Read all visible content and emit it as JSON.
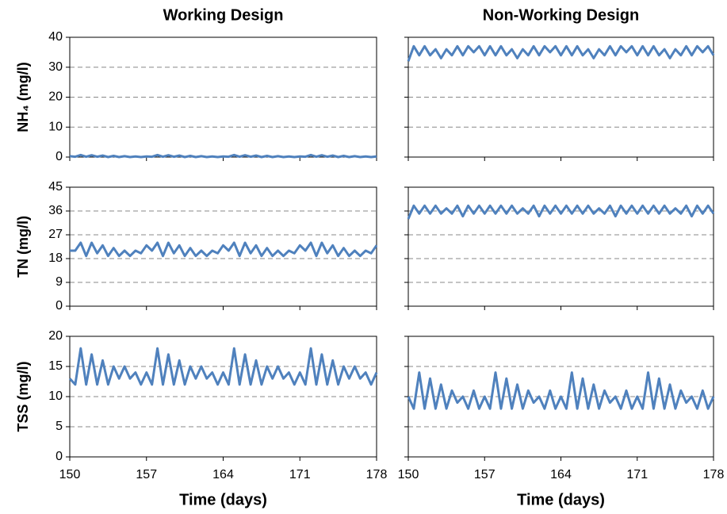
{
  "chart_data": [
    {
      "type": "line",
      "title": "Working Design",
      "ylabel": "NH₄ (mg/l)",
      "color": "#4f81bd",
      "x": [
        150,
        150.5,
        151,
        151.5,
        152,
        152.5,
        153,
        153.5,
        154,
        154.5,
        155,
        155.5,
        156,
        156.5,
        157,
        157.5,
        158,
        158.5,
        159,
        159.5,
        160,
        160.5,
        161,
        161.5,
        162,
        162.5,
        163,
        163.5,
        164,
        164.5,
        165,
        165.5,
        166,
        166.5,
        167,
        167.5,
        168,
        168.5,
        169,
        169.5,
        170,
        170.5,
        171,
        171.5,
        172,
        172.5,
        173,
        173.5,
        174,
        174.5,
        175,
        175.5,
        176,
        176.5,
        177,
        177.5,
        178
      ],
      "values": [
        0.3,
        0.1,
        0.7,
        0.1,
        0.6,
        0.1,
        0.5,
        0.0,
        0.4,
        0.0,
        0.3,
        0.0,
        0.2,
        0.0,
        0.2,
        0.1,
        0.7,
        0.1,
        0.6,
        0.1,
        0.5,
        0.0,
        0.4,
        0.0,
        0.3,
        0.0,
        0.2,
        0.0,
        0.2,
        0.1,
        0.7,
        0.1,
        0.6,
        0.1,
        0.5,
        0.0,
        0.4,
        0.0,
        0.3,
        0.0,
        0.2,
        0.0,
        0.2,
        0.1,
        0.7,
        0.1,
        0.6,
        0.1,
        0.5,
        0.0,
        0.4,
        0.0,
        0.3,
        0.0,
        0.2,
        0.0,
        0.2
      ],
      "xlim": [
        150,
        178
      ],
      "xticks": [
        150,
        157,
        164,
        171,
        178
      ],
      "ylim": [
        0,
        40
      ],
      "yticks": [
        0,
        10,
        20,
        30,
        40
      ],
      "grid": true,
      "show_ytick_labels": true,
      "show_xtick_labels": false
    },
    {
      "type": "line",
      "title": "Non-Working Design",
      "color": "#4f81bd",
      "x": [
        150,
        150.5,
        151,
        151.5,
        152,
        152.5,
        153,
        153.5,
        154,
        154.5,
        155,
        155.5,
        156,
        156.5,
        157,
        157.5,
        158,
        158.5,
        159,
        159.5,
        160,
        160.5,
        161,
        161.5,
        162,
        162.5,
        163,
        163.5,
        164,
        164.5,
        165,
        165.5,
        166,
        166.5,
        167,
        167.5,
        168,
        168.5,
        169,
        169.5,
        170,
        170.5,
        171,
        171.5,
        172,
        172.5,
        173,
        173.5,
        174,
        174.5,
        175,
        175.5,
        176,
        176.5,
        177,
        177.5,
        178
      ],
      "values": [
        32,
        37,
        34,
        37,
        34,
        36,
        33,
        36,
        34,
        37,
        34,
        37,
        35,
        37,
        34,
        37,
        34,
        37,
        34,
        36,
        33,
        36,
        34,
        37,
        34,
        37,
        35,
        37,
        34,
        37,
        34,
        37,
        34,
        36,
        33,
        36,
        34,
        37,
        34,
        37,
        35,
        37,
        34,
        37,
        34,
        37,
        34,
        36,
        33,
        36,
        34,
        37,
        34,
        37,
        35,
        37,
        34
      ],
      "xlim": [
        150,
        178
      ],
      "xticks": [
        150,
        157,
        164,
        171,
        178
      ],
      "ylim": [
        0,
        40
      ],
      "yticks": [
        0,
        10,
        20,
        30,
        40
      ],
      "grid": true,
      "show_ytick_labels": false,
      "show_xtick_labels": false
    },
    {
      "type": "line",
      "ylabel": "TN (mg/l)",
      "color": "#4f81bd",
      "x": [
        150,
        150.5,
        151,
        151.5,
        152,
        152.5,
        153,
        153.5,
        154,
        154.5,
        155,
        155.5,
        156,
        156.5,
        157,
        157.5,
        158,
        158.5,
        159,
        159.5,
        160,
        160.5,
        161,
        161.5,
        162,
        162.5,
        163,
        163.5,
        164,
        164.5,
        165,
        165.5,
        166,
        166.5,
        167,
        167.5,
        168,
        168.5,
        169,
        169.5,
        170,
        170.5,
        171,
        171.5,
        172,
        172.5,
        173,
        173.5,
        174,
        174.5,
        175,
        175.5,
        176,
        176.5,
        177,
        177.5,
        178
      ],
      "values": [
        21,
        21,
        24,
        19,
        24,
        20,
        23,
        19,
        22,
        19,
        21,
        19,
        21,
        20,
        23,
        21,
        24,
        19,
        24,
        20,
        23,
        19,
        22,
        19,
        21,
        19,
        21,
        20,
        23,
        21,
        24,
        19,
        24,
        20,
        23,
        19,
        22,
        19,
        21,
        19,
        21,
        20,
        23,
        21,
        24,
        19,
        24,
        20,
        23,
        19,
        22,
        19,
        21,
        19,
        21,
        20,
        23
      ],
      "xlim": [
        150,
        178
      ],
      "xticks": [
        150,
        157,
        164,
        171,
        178
      ],
      "ylim": [
        0,
        45
      ],
      "yticks": [
        0,
        9,
        18,
        27,
        36,
        45
      ],
      "grid": true,
      "show_ytick_labels": true,
      "show_xtick_labels": false
    },
    {
      "type": "line",
      "color": "#4f81bd",
      "x": [
        150,
        150.5,
        151,
        151.5,
        152,
        152.5,
        153,
        153.5,
        154,
        154.5,
        155,
        155.5,
        156,
        156.5,
        157,
        157.5,
        158,
        158.5,
        159,
        159.5,
        160,
        160.5,
        161,
        161.5,
        162,
        162.5,
        163,
        163.5,
        164,
        164.5,
        165,
        165.5,
        166,
        166.5,
        167,
        167.5,
        168,
        168.5,
        169,
        169.5,
        170,
        170.5,
        171,
        171.5,
        172,
        172.5,
        173,
        173.5,
        174,
        174.5,
        175,
        175.5,
        176,
        176.5,
        177,
        177.5,
        178
      ],
      "values": [
        33,
        38,
        35,
        38,
        35,
        38,
        35,
        37,
        35,
        38,
        34,
        38,
        35,
        38,
        35,
        38,
        35,
        38,
        35,
        38,
        35,
        37,
        35,
        38,
        34,
        38,
        35,
        38,
        35,
        38,
        35,
        38,
        35,
        38,
        35,
        37,
        35,
        38,
        34,
        38,
        35,
        38,
        35,
        38,
        35,
        38,
        35,
        38,
        35,
        37,
        35,
        38,
        34,
        38,
        35,
        38,
        35
      ],
      "xlim": [
        150,
        178
      ],
      "xticks": [
        150,
        157,
        164,
        171,
        178
      ],
      "ylim": [
        0,
        45
      ],
      "yticks": [
        0,
        9,
        18,
        27,
        36,
        45
      ],
      "grid": true,
      "show_ytick_labels": false,
      "show_xtick_labels": false
    },
    {
      "type": "line",
      "ylabel": "TSS (mg/l)",
      "xlabel": "Time (days)",
      "color": "#4f81bd",
      "x": [
        150,
        150.5,
        151,
        151.5,
        152,
        152.5,
        153,
        153.5,
        154,
        154.5,
        155,
        155.5,
        156,
        156.5,
        157,
        157.5,
        158,
        158.5,
        159,
        159.5,
        160,
        160.5,
        161,
        161.5,
        162,
        162.5,
        163,
        163.5,
        164,
        164.5,
        165,
        165.5,
        166,
        166.5,
        167,
        167.5,
        168,
        168.5,
        169,
        169.5,
        170,
        170.5,
        171,
        171.5,
        172,
        172.5,
        173,
        173.5,
        174,
        174.5,
        175,
        175.5,
        176,
        176.5,
        177,
        177.5,
        178
      ],
      "values": [
        13,
        12,
        18,
        12,
        17,
        12,
        16,
        12,
        15,
        13,
        15,
        13,
        14,
        12,
        14,
        12,
        18,
        12,
        17,
        12,
        16,
        12,
        15,
        13,
        15,
        13,
        14,
        12,
        14,
        12,
        18,
        12,
        17,
        12,
        16,
        12,
        15,
        13,
        15,
        13,
        14,
        12,
        14,
        12,
        18,
        12,
        17,
        12,
        16,
        12,
        15,
        13,
        15,
        13,
        14,
        12,
        14
      ],
      "xlim": [
        150,
        178
      ],
      "xticks": [
        150,
        157,
        164,
        171,
        178
      ],
      "ylim": [
        0,
        20
      ],
      "yticks": [
        0,
        5,
        10,
        15,
        20
      ],
      "grid": true,
      "show_ytick_labels": true,
      "show_xtick_labels": true
    },
    {
      "type": "line",
      "xlabel": "Time (days)",
      "color": "#4f81bd",
      "x": [
        150,
        150.5,
        151,
        151.5,
        152,
        152.5,
        153,
        153.5,
        154,
        154.5,
        155,
        155.5,
        156,
        156.5,
        157,
        157.5,
        158,
        158.5,
        159,
        159.5,
        160,
        160.5,
        161,
        161.5,
        162,
        162.5,
        163,
        163.5,
        164,
        164.5,
        165,
        165.5,
        166,
        166.5,
        167,
        167.5,
        168,
        168.5,
        169,
        169.5,
        170,
        170.5,
        171,
        171.5,
        172,
        172.5,
        173,
        173.5,
        174,
        174.5,
        175,
        175.5,
        176,
        176.5,
        177,
        177.5,
        178
      ],
      "values": [
        10,
        8,
        14,
        8,
        13,
        8,
        12,
        8,
        11,
        9,
        10,
        8,
        11,
        8,
        10,
        8,
        14,
        8,
        13,
        8,
        12,
        8,
        11,
        9,
        10,
        8,
        11,
        8,
        10,
        8,
        14,
        8,
        13,
        8,
        12,
        8,
        11,
        9,
        10,
        8,
        11,
        8,
        10,
        8,
        14,
        8,
        13,
        8,
        12,
        8,
        11,
        9,
        10,
        8,
        11,
        8,
        10
      ],
      "xlim": [
        150,
        178
      ],
      "xticks": [
        150,
        157,
        164,
        171,
        178
      ],
      "ylim": [
        0,
        20
      ],
      "yticks": [
        0,
        5,
        10,
        15,
        20
      ],
      "grid": true,
      "show_ytick_labels": false,
      "show_xtick_labels": true
    }
  ]
}
